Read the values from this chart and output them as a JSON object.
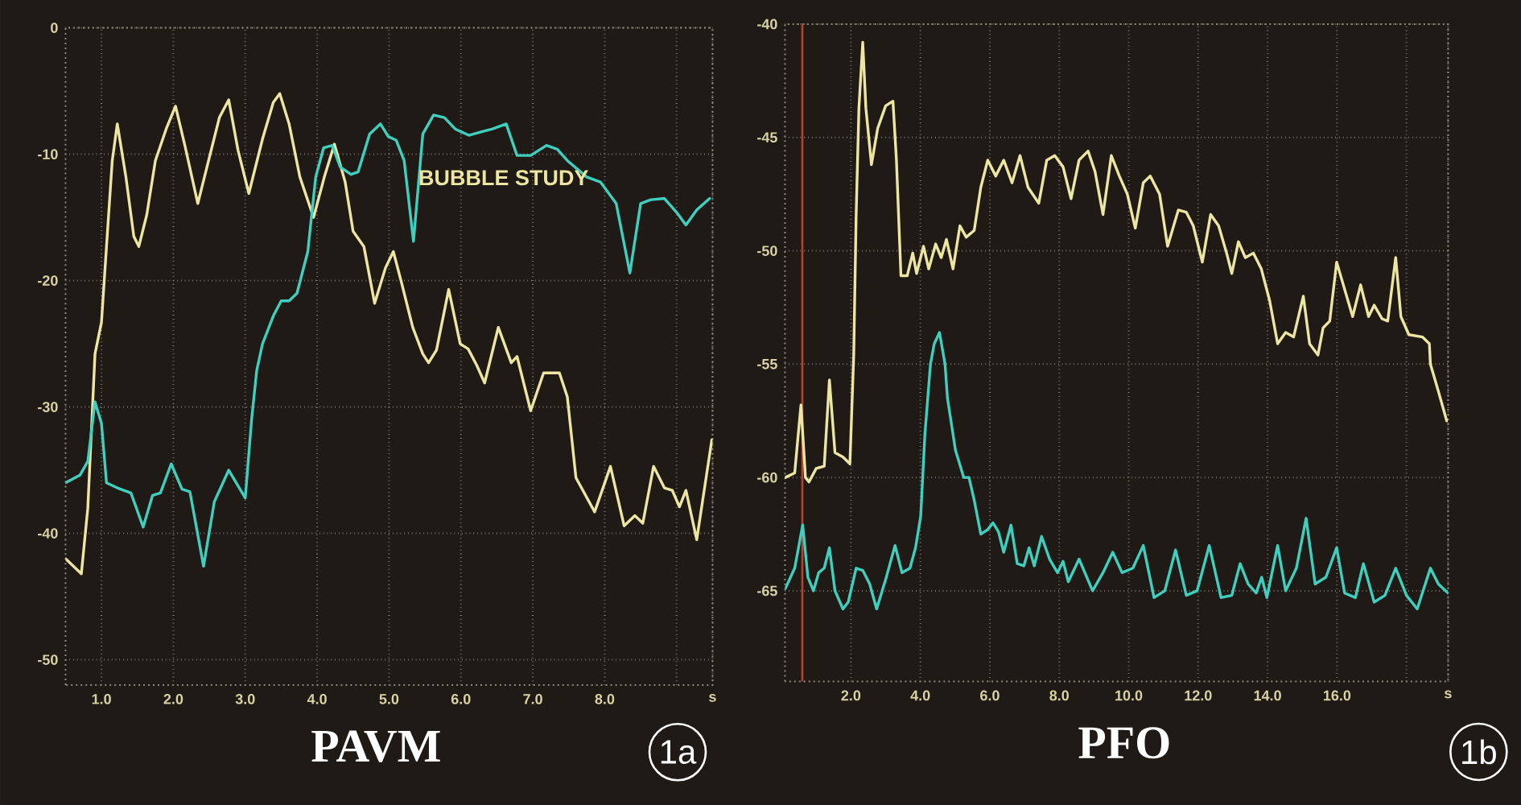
{
  "chart_data": [
    {
      "type": "line",
      "title": "PAVM",
      "xlim": [
        0.5,
        9.5
      ],
      "ylim": [
        -52,
        0
      ],
      "xticks": [
        {
          "value": 1,
          "label": "1.0"
        },
        {
          "value": 2,
          "label": "2.0"
        },
        {
          "value": 3,
          "label": "3.0"
        },
        {
          "value": 4,
          "label": "4.0"
        },
        {
          "value": 5,
          "label": "5.0"
        },
        {
          "value": 6,
          "label": "6.0"
        },
        {
          "value": 7,
          "label": "7.0"
        },
        {
          "value": 8,
          "label": "8.0"
        },
        {
          "value": 9,
          "label": null
        },
        {
          "value": 9.5,
          "label": "s"
        }
      ],
      "yticks": [
        0,
        -10,
        -20,
        -30,
        -40,
        -50
      ],
      "grid": true,
      "marker": "none",
      "annotations": [
        "BUBBLE STUDY",
        "1a"
      ],
      "series": [
        {
          "color": "#ede6a2",
          "x": [
            0.5,
            0.72,
            0.81,
            0.91,
            1.0,
            1.07,
            1.15,
            1.22,
            1.34,
            1.45,
            1.52,
            1.63,
            1.75,
            1.9,
            2.03,
            2.16,
            2.34,
            2.49,
            2.64,
            2.77,
            2.9,
            3.05,
            3.24,
            3.39,
            3.48,
            3.61,
            3.76,
            3.95,
            4.1,
            4.24,
            4.39,
            4.5,
            4.65,
            4.8,
            4.95,
            5.06,
            5.18,
            5.33,
            5.47,
            5.55,
            5.66,
            5.83,
            5.99,
            6.1,
            6.22,
            6.33,
            6.52,
            6.7,
            6.78,
            6.97,
            7.15,
            7.37,
            7.48,
            7.6,
            7.86,
            8.08,
            8.27,
            8.42,
            8.53,
            8.68,
            8.83,
            8.94,
            9.04,
            9.13,
            9.28,
            9.49
          ],
          "values": [
            -42.0,
            -43.2,
            -38.0,
            -25.8,
            -23.3,
            -17.3,
            -10.5,
            -7.6,
            -11.8,
            -16.5,
            -17.3,
            -14.8,
            -10.5,
            -8.0,
            -6.2,
            -9.3,
            -13.9,
            -10.5,
            -7.1,
            -5.7,
            -9.7,
            -13.1,
            -8.8,
            -5.9,
            -5.2,
            -7.6,
            -11.8,
            -15.0,
            -11.8,
            -9.2,
            -12.2,
            -16.1,
            -17.3,
            -21.8,
            -19.0,
            -17.7,
            -20.3,
            -23.7,
            -25.8,
            -26.5,
            -25.5,
            -20.7,
            -25.0,
            -25.4,
            -26.7,
            -28.1,
            -23.7,
            -26.5,
            -26.0,
            -30.3,
            -27.3,
            -27.3,
            -29.2,
            -35.6,
            -38.3,
            -34.7,
            -39.4,
            -38.6,
            -39.2,
            -34.7,
            -36.4,
            -36.6,
            -37.9,
            -36.6,
            -40.5,
            -32.6
          ]
        },
        {
          "color": "#3fcfbf",
          "x": [
            0.5,
            0.7,
            0.81,
            0.91,
            1.0,
            1.07,
            1.22,
            1.41,
            1.58,
            1.71,
            1.82,
            1.97,
            2.12,
            2.23,
            2.42,
            2.57,
            2.77,
            3.0,
            3.09,
            3.16,
            3.24,
            3.39,
            3.5,
            3.61,
            3.72,
            3.87,
            3.98,
            4.09,
            4.21,
            4.32,
            4.47,
            4.57,
            4.73,
            4.88,
            4.99,
            5.1,
            5.21,
            5.34,
            5.47,
            5.62,
            5.77,
            5.92,
            6.11,
            6.3,
            6.44,
            6.63,
            6.78,
            6.97,
            7.19,
            7.34,
            7.48,
            7.75,
            7.94,
            8.16,
            8.35,
            8.5,
            8.64,
            8.83,
            9.0,
            9.13,
            9.28,
            9.46
          ],
          "values": [
            -36.0,
            -35.4,
            -34.3,
            -29.6,
            -31.3,
            -36.0,
            -36.4,
            -36.8,
            -39.5,
            -37.0,
            -36.8,
            -34.5,
            -36.5,
            -36.7,
            -42.6,
            -37.5,
            -35.0,
            -37.2,
            -30.9,
            -27.1,
            -25.0,
            -22.8,
            -21.6,
            -21.6,
            -21.0,
            -17.7,
            -11.8,
            -9.5,
            -9.3,
            -11.0,
            -11.6,
            -11.4,
            -8.4,
            -7.6,
            -8.6,
            -8.9,
            -10.5,
            -16.9,
            -8.4,
            -6.9,
            -7.1,
            -8.0,
            -8.5,
            -8.2,
            -8.0,
            -7.6,
            -10.1,
            -10.1,
            -9.3,
            -9.6,
            -10.5,
            -11.8,
            -12.2,
            -13.9,
            -19.4,
            -13.9,
            -13.6,
            -13.5,
            -14.6,
            -15.6,
            -14.4,
            -13.5
          ]
        }
      ]
    },
    {
      "type": "line",
      "title": "PFO",
      "xlim": [
        0.1,
        19.2
      ],
      "ylim": [
        -69,
        -40
      ],
      "xticks": [
        {
          "value": 2,
          "label": "2.0"
        },
        {
          "value": 4,
          "label": "4.0"
        },
        {
          "value": 6,
          "label": "6.0"
        },
        {
          "value": 8,
          "label": "8.0"
        },
        {
          "value": 10,
          "label": "10.0"
        },
        {
          "value": 12,
          "label": "12.0"
        },
        {
          "value": 14,
          "label": "14.0"
        },
        {
          "value": 16,
          "label": "16.0"
        },
        {
          "value": 18,
          "label": null
        },
        {
          "value": 19.2,
          "label": "s"
        }
      ],
      "yticks": [
        -40,
        -45,
        -50,
        -55,
        -60,
        -65
      ],
      "grid": true,
      "marker": "none",
      "annotations": [
        "1b"
      ],
      "ref_lines": [
        {
          "axis": "x",
          "value": 0.6,
          "color": "#b8402e"
        }
      ],
      "series": [
        {
          "color": "#ede6a2",
          "x": [
            0.11,
            0.38,
            0.56,
            0.69,
            0.79,
            1.0,
            1.23,
            1.38,
            1.54,
            1.77,
            1.97,
            2.08,
            2.15,
            2.23,
            2.34,
            2.43,
            2.59,
            2.77,
            3.0,
            3.21,
            3.31,
            3.44,
            3.62,
            3.78,
            3.89,
            4.09,
            4.24,
            4.44,
            4.6,
            4.75,
            4.94,
            5.14,
            5.32,
            5.55,
            5.74,
            5.94,
            6.17,
            6.4,
            6.64,
            6.87,
            7.1,
            7.41,
            7.64,
            7.87,
            8.11,
            8.34,
            8.57,
            8.83,
            9.03,
            9.26,
            9.5,
            9.73,
            9.96,
            10.19,
            10.42,
            10.62,
            10.89,
            11.12,
            11.43,
            11.66,
            11.86,
            12.12,
            12.36,
            12.59,
            12.82,
            12.97,
            13.16,
            13.36,
            13.59,
            13.82,
            14.06,
            14.29,
            14.52,
            14.75,
            15.03,
            15.21,
            15.45,
            15.6,
            15.79,
            15.99,
            16.22,
            16.45,
            16.68,
            16.91,
            17.07,
            17.3,
            17.46,
            17.69,
            17.84,
            18.07,
            18.46,
            18.66,
            18.69,
            18.92,
            19.16
          ],
          "values": [
            -60.0,
            -59.8,
            -56.8,
            -60.0,
            -60.2,
            -59.6,
            -59.5,
            -55.7,
            -58.9,
            -59.1,
            -59.4,
            -54.6,
            -48.4,
            -43.7,
            -40.8,
            -43.7,
            -46.2,
            -44.6,
            -43.6,
            -43.4,
            -46.0,
            -51.1,
            -51.1,
            -50.1,
            -51.0,
            -49.8,
            -50.8,
            -49.7,
            -50.3,
            -49.5,
            -50.8,
            -48.9,
            -49.4,
            -49.1,
            -47.2,
            -46.0,
            -46.7,
            -46.0,
            -47.0,
            -45.8,
            -47.2,
            -47.9,
            -46.0,
            -45.8,
            -46.3,
            -47.7,
            -46.0,
            -45.6,
            -46.5,
            -48.4,
            -45.8,
            -46.7,
            -47.5,
            -49.0,
            -47.0,
            -46.7,
            -47.5,
            -49.8,
            -48.2,
            -48.3,
            -48.9,
            -50.5,
            -48.4,
            -48.9,
            -50.1,
            -51.0,
            -49.6,
            -50.3,
            -50.1,
            -50.8,
            -52.2,
            -54.1,
            -53.6,
            -53.8,
            -52.0,
            -54.1,
            -54.6,
            -53.4,
            -53.1,
            -50.5,
            -51.7,
            -52.9,
            -51.5,
            -52.9,
            -52.4,
            -53.0,
            -53.1,
            -50.3,
            -52.9,
            -53.7,
            -53.8,
            -54.1,
            -55.0,
            -56.2,
            -57.5
          ]
        },
        {
          "color": "#3fcfbf",
          "x": [
            0.11,
            0.38,
            0.61,
            0.76,
            0.92,
            1.07,
            1.23,
            1.38,
            1.54,
            1.77,
            1.92,
            2.15,
            2.34,
            2.54,
            2.74,
            3.0,
            3.27,
            3.47,
            3.7,
            3.86,
            4.01,
            4.13,
            4.29,
            4.4,
            4.55,
            4.71,
            4.78,
            5.01,
            5.25,
            5.4,
            5.55,
            5.74,
            5.94,
            6.09,
            6.25,
            6.4,
            6.61,
            6.79,
            6.98,
            7.13,
            7.28,
            7.49,
            7.72,
            7.95,
            8.11,
            8.26,
            8.57,
            8.96,
            9.26,
            9.54,
            9.81,
            10.12,
            10.42,
            10.73,
            11.04,
            11.35,
            11.66,
            11.97,
            12.32,
            12.66,
            12.97,
            13.21,
            13.44,
            13.67,
            13.83,
            13.98,
            14.29,
            14.52,
            14.83,
            15.11,
            15.37,
            15.68,
            15.99,
            16.22,
            16.53,
            16.76,
            17.07,
            17.38,
            17.69,
            18.0,
            18.31,
            18.69,
            18.92,
            19.2
          ],
          "values": [
            -64.9,
            -64.0,
            -62.1,
            -64.4,
            -65.0,
            -64.2,
            -64.0,
            -63.1,
            -65.0,
            -65.8,
            -65.5,
            -64.0,
            -64.1,
            -64.7,
            -65.8,
            -64.5,
            -63.0,
            -64.2,
            -64.0,
            -63.1,
            -61.7,
            -58.1,
            -55.0,
            -54.1,
            -53.6,
            -55.0,
            -56.5,
            -58.8,
            -60.0,
            -60.0,
            -61.0,
            -62.5,
            -62.3,
            -62.0,
            -62.4,
            -63.3,
            -62.1,
            -63.8,
            -63.9,
            -63.1,
            -63.9,
            -62.6,
            -63.6,
            -64.2,
            -63.7,
            -64.6,
            -63.6,
            -65.0,
            -64.2,
            -63.3,
            -64.2,
            -64.0,
            -63.0,
            -65.3,
            -65.0,
            -63.2,
            -65.2,
            -65.0,
            -63.0,
            -65.3,
            -65.2,
            -63.8,
            -64.7,
            -65.1,
            -64.4,
            -65.3,
            -63.0,
            -65.0,
            -64.0,
            -61.8,
            -64.7,
            -64.4,
            -63.1,
            -65.1,
            -65.3,
            -63.8,
            -65.5,
            -65.2,
            -64.0,
            -65.2,
            -65.8,
            -64.0,
            -64.7,
            -65.1
          ]
        }
      ]
    }
  ]
}
